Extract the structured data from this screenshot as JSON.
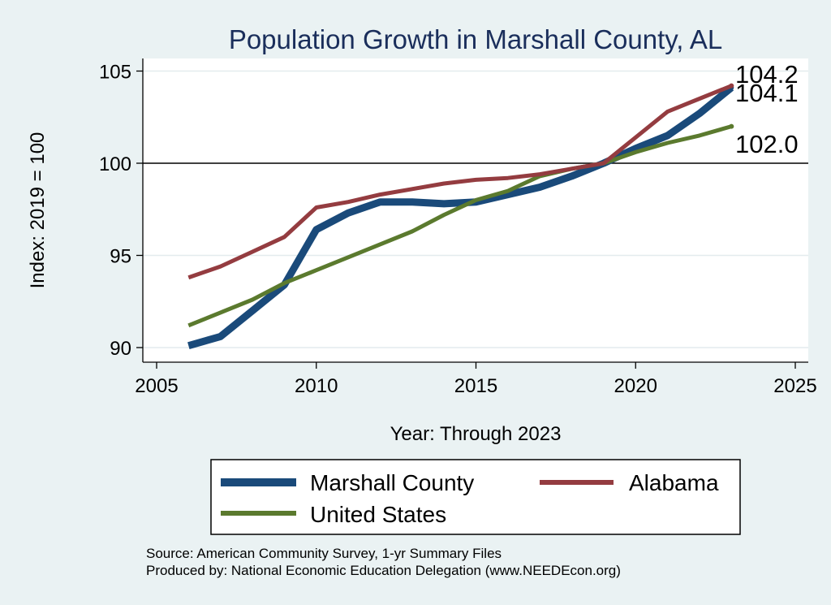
{
  "chart_data": {
    "type": "line",
    "title": "Population Growth in Marshall County, AL",
    "xlabel": "Year: Through 2023",
    "ylabel": "Index: 2019 = 100",
    "xlim": [
      2005,
      2025
    ],
    "ylim": [
      89.5,
      105.7
    ],
    "xticks": [
      2005,
      2010,
      2015,
      2020,
      2025
    ],
    "yticks": [
      90,
      95,
      100,
      105
    ],
    "reference_line": 100,
    "grid": true,
    "legend_position": "bottom",
    "series": [
      {
        "name": "Marshall  County",
        "color": "#1a4a7a",
        "x": [
          2006,
          2007,
          2008,
          2009,
          2010,
          2011,
          2012,
          2013,
          2014,
          2015,
          2016,
          2017,
          2018,
          2019,
          2020,
          2021,
          2022,
          2023
        ],
        "values": [
          90.1,
          90.6,
          92.0,
          93.4,
          96.4,
          97.3,
          97.9,
          97.9,
          97.8,
          97.9,
          98.3,
          98.7,
          99.3,
          100.0,
          100.8,
          101.5,
          102.7,
          104.1
        ],
        "end_label": "104.1"
      },
      {
        "name": "Alabama",
        "color": "#943c40",
        "x": [
          2006,
          2007,
          2008,
          2009,
          2010,
          2011,
          2012,
          2013,
          2014,
          2015,
          2016,
          2017,
          2018,
          2019,
          2020,
          2021,
          2022,
          2023
        ],
        "values": [
          93.8,
          94.4,
          95.2,
          96.0,
          97.6,
          97.9,
          98.3,
          98.6,
          98.9,
          99.1,
          99.2,
          99.4,
          99.7,
          100.0,
          101.4,
          102.8,
          103.5,
          104.2
        ],
        "end_label": "104.2"
      },
      {
        "name": "United States",
        "color": "#5b7a2e",
        "x": [
          2006,
          2007,
          2008,
          2009,
          2010,
          2011,
          2012,
          2013,
          2014,
          2015,
          2016,
          2017,
          2018,
          2019,
          2020,
          2021,
          2022,
          2023
        ],
        "values": [
          91.2,
          91.9,
          92.6,
          93.5,
          94.2,
          94.9,
          95.6,
          96.3,
          97.2,
          98.0,
          98.5,
          99.3,
          99.7,
          100.0,
          100.6,
          101.1,
          101.5,
          102.0
        ],
        "end_label": "102.0"
      }
    ]
  },
  "source": {
    "line1": "Source: American Community Survey, 1-yr Summary Files",
    "line2": "Produced by: National Economic Education Delegation (www.NEEDEcon.org)"
  }
}
